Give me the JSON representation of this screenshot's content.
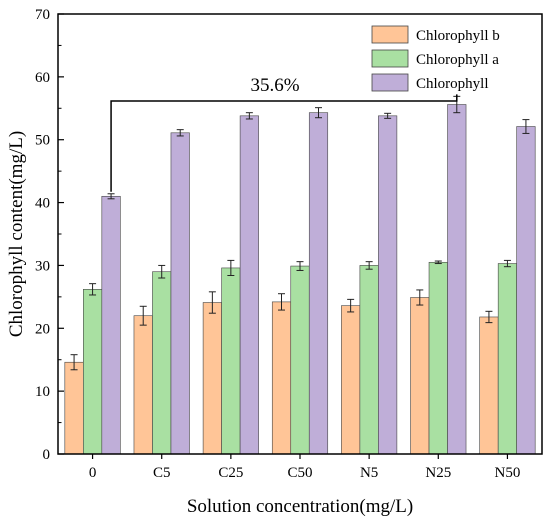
{
  "chart_data": {
    "type": "bar",
    "xlabel": "Solution concentration(mg/L)",
    "ylabel": "Chlorophyll content(mg/L)",
    "ylim": [
      0,
      70
    ],
    "yticks": [
      0,
      10,
      20,
      30,
      40,
      50,
      60,
      70
    ],
    "categories": [
      "0",
      "C5",
      "C25",
      "C50",
      "N5",
      "N25",
      "N50"
    ],
    "series": [
      {
        "name": "Chlorophyll b",
        "color": "#FFC597",
        "values": [
          14.6,
          22.0,
          24.1,
          24.2,
          23.6,
          24.9,
          21.8
        ],
        "errors": [
          1.2,
          1.5,
          1.7,
          1.3,
          1.0,
          1.2,
          0.9
        ]
      },
      {
        "name": "Chlorophyll a",
        "color": "#A9E0A2",
        "values": [
          26.2,
          29.0,
          29.6,
          29.9,
          30.0,
          30.5,
          30.3
        ],
        "errors": [
          0.9,
          1.0,
          1.2,
          0.7,
          0.6,
          0.2,
          0.5
        ]
      },
      {
        "name": "Chlorophyll",
        "color": "#BFAED8",
        "values": [
          41.0,
          51.1,
          53.8,
          54.3,
          53.8,
          55.6,
          52.1
        ],
        "errors": [
          0.4,
          0.5,
          0.5,
          0.8,
          0.4,
          1.3,
          1.1
        ]
      }
    ],
    "annotation": {
      "text": "35.6%",
      "from_category": "0",
      "to_category": "N25",
      "series": "Chlorophyll"
    },
    "legend_position": "top-right",
    "grid": false
  }
}
